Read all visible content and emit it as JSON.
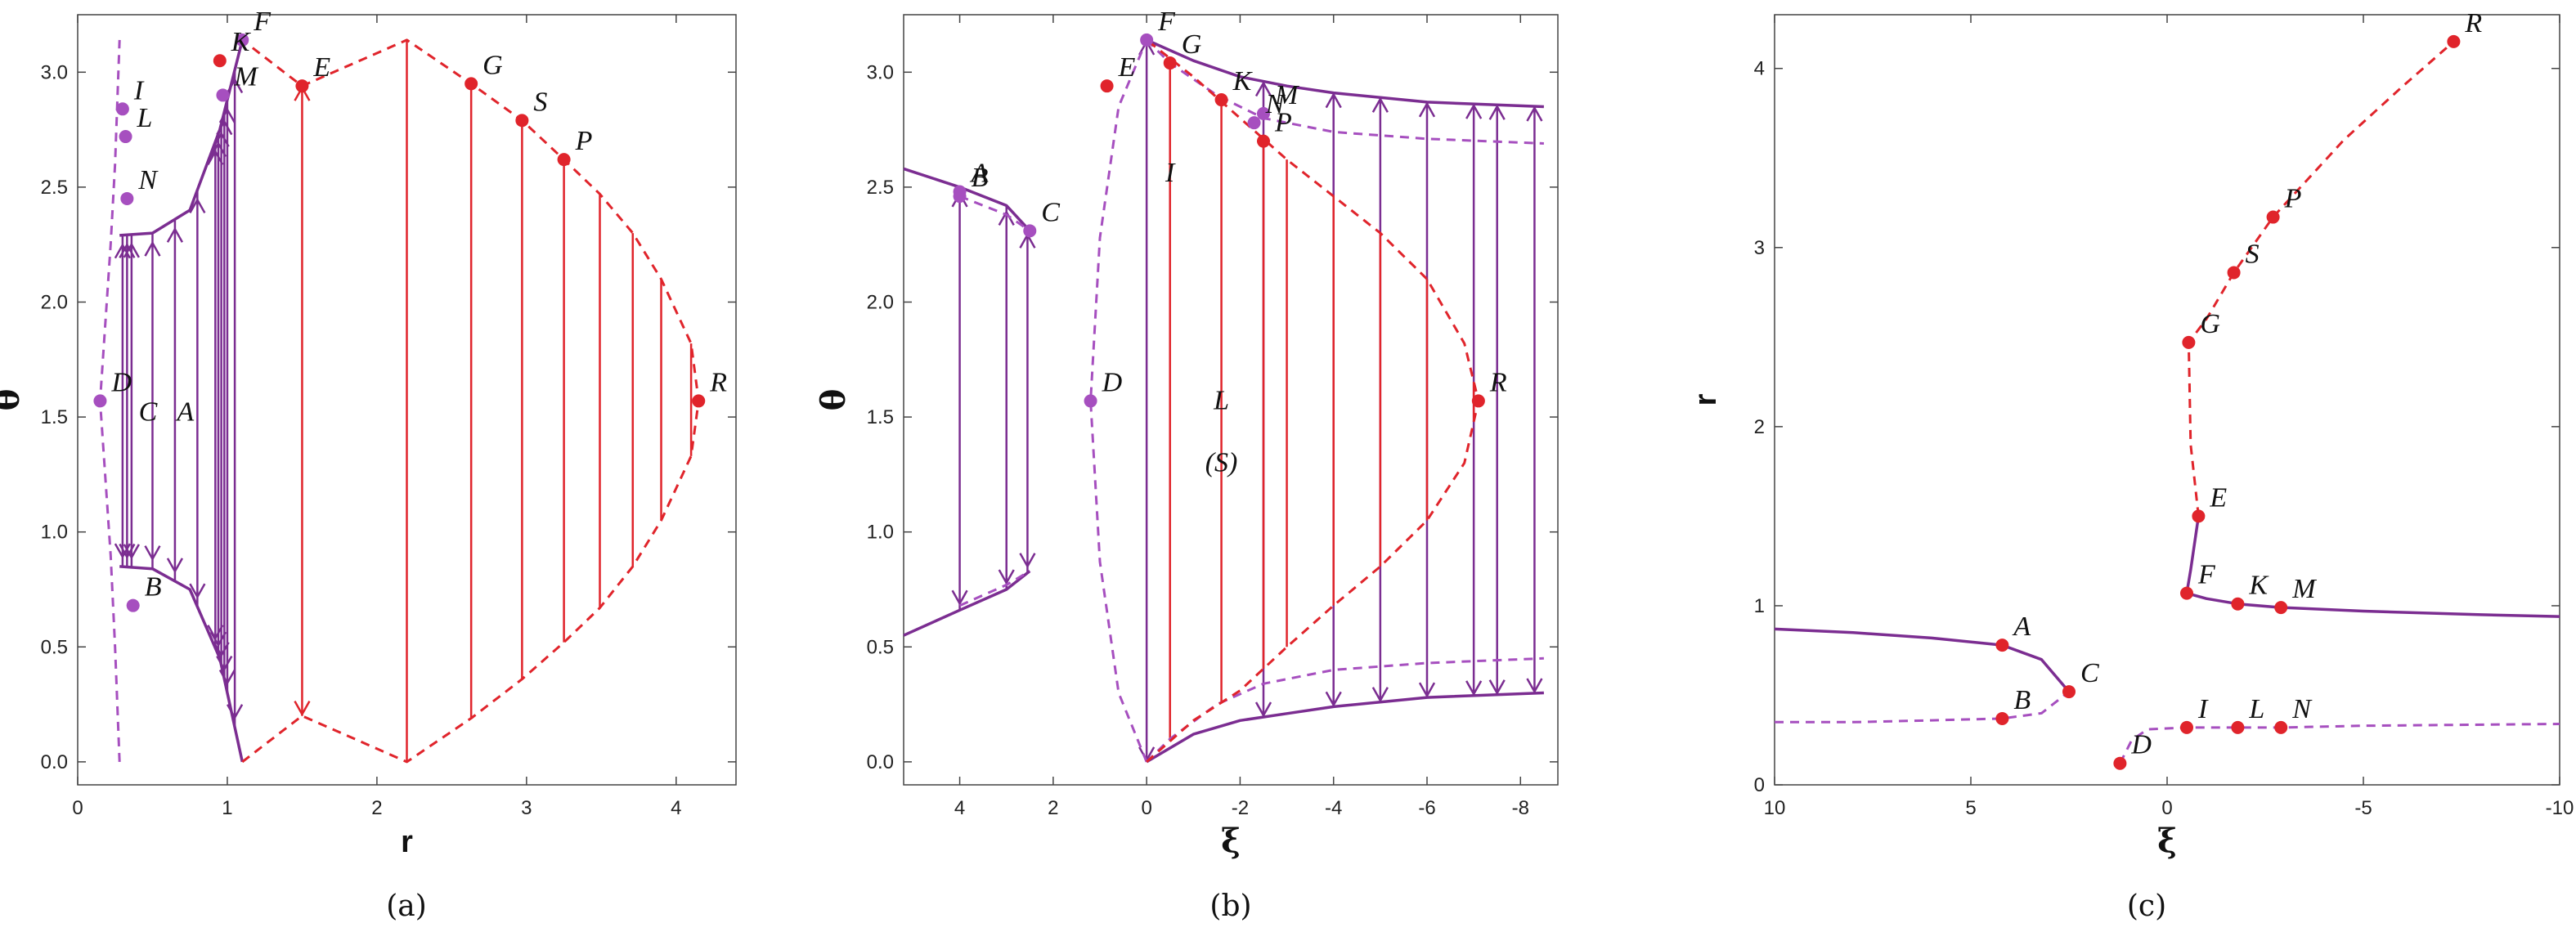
{
  "colors": {
    "purple": "#7b2d91",
    "light_purple": "#a64fbf",
    "red": "#e0242b",
    "axis": "#444444"
  },
  "captions": [
    "(a)",
    "(b)",
    "(c)"
  ],
  "chart_data": [
    {
      "type": "line",
      "panel": "(a)",
      "xlabel": "r",
      "ylabel": "θ",
      "xlim": [
        0,
        4.4
      ],
      "ylim": [
        -0.1,
        3.25
      ],
      "xticks": [
        0,
        1,
        2,
        3,
        4
      ],
      "yticks": [
        0.0,
        0.5,
        1.0,
        1.5,
        2.0,
        2.5,
        3.0
      ],
      "grid": false,
      "series": [
        {
          "style": "purple-solid",
          "points": [
            [
              0.28,
              0.85
            ],
            [
              0.5,
              0.84
            ],
            [
              0.75,
              0.75
            ],
            [
              0.95,
              0.45
            ],
            [
              1.1,
              0.0
            ]
          ]
        },
        {
          "style": "purple-solid",
          "points": [
            [
              0.28,
              2.29
            ],
            [
              0.5,
              2.3
            ],
            [
              0.75,
              2.4
            ],
            [
              0.95,
              2.75
            ],
            [
              1.1,
              3.14
            ]
          ]
        },
        {
          "style": "purple-dashed",
          "points": [
            [
              0.28,
              0.0
            ],
            [
              0.25,
              0.5
            ],
            [
              0.22,
              0.9
            ],
            [
              0.15,
              1.57
            ],
            [
              0.22,
              2.25
            ],
            [
              0.25,
              2.6
            ],
            [
              0.28,
              3.14
            ]
          ]
        },
        {
          "style": "red-dashed",
          "points": [
            [
              1.1,
              0.0
            ],
            [
              1.5,
              0.2
            ],
            [
              2.2,
              0.0
            ],
            [
              2.63,
              0.19
            ],
            [
              2.97,
              0.36
            ],
            [
              3.25,
              0.52
            ],
            [
              3.49,
              0.67
            ],
            [
              3.71,
              0.85
            ],
            [
              3.9,
              1.05
            ],
            [
              4.1,
              1.33
            ],
            [
              4.15,
              1.57
            ],
            [
              4.1,
              1.82
            ],
            [
              3.9,
              2.1
            ],
            [
              3.71,
              2.3
            ],
            [
              3.49,
              2.47
            ],
            [
              3.25,
              2.62
            ],
            [
              2.97,
              2.79
            ],
            [
              2.63,
              2.95
            ],
            [
              2.2,
              3.14
            ],
            [
              1.5,
              2.94
            ],
            [
              1.1,
              3.14
            ]
          ]
        }
      ],
      "points": [
        {
          "label": "A",
          "x": 0.72,
          "y": 1.52,
          "labelOnly": true
        },
        {
          "label": "B",
          "x": 0.37,
          "y": 0.68
        },
        {
          "label": "C",
          "x": 0.47,
          "y": 1.52,
          "labelOnly": true
        },
        {
          "label": "D",
          "x": 0.15,
          "y": 1.57
        },
        {
          "label": "E",
          "x": 1.5,
          "y": 2.94
        },
        {
          "label": "F",
          "x": 1.1,
          "y": 3.14
        },
        {
          "label": "G",
          "x": 2.63,
          "y": 2.95
        },
        {
          "label": "I",
          "x": 0.3,
          "y": 2.84
        },
        {
          "label": "K",
          "x": 0.95,
          "y": 3.05
        },
        {
          "label": "L",
          "x": 0.32,
          "y": 2.72
        },
        {
          "label": "M",
          "x": 0.97,
          "y": 2.9
        },
        {
          "label": "N",
          "x": 0.33,
          "y": 2.45
        },
        {
          "label": "P",
          "x": 3.25,
          "y": 2.62
        },
        {
          "label": "R",
          "x": 4.15,
          "y": 1.57
        },
        {
          "label": "S",
          "x": 2.97,
          "y": 2.79
        }
      ]
    },
    {
      "type": "line",
      "panel": "(b)",
      "xlabel": "ξ",
      "ylabel": "θ",
      "xlim": [
        5.2,
        -8.8
      ],
      "ylim": [
        -0.1,
        3.25
      ],
      "xticks": [
        4,
        2,
        0,
        -2,
        -4,
        -6,
        -8
      ],
      "yticks": [
        0.0,
        0.5,
        1.0,
        1.5,
        2.0,
        2.5,
        3.0
      ],
      "grid": false,
      "series": [
        {
          "style": "purple-solid",
          "points": [
            [
              5.2,
              2.58
            ],
            [
              4.0,
              2.5
            ],
            [
              3.0,
              2.42
            ],
            [
              2.5,
              2.31
            ]
          ]
        },
        {
          "style": "purple-solid",
          "points": [
            [
              5.2,
              0.55
            ],
            [
              4.0,
              0.66
            ],
            [
              3.0,
              0.75
            ],
            [
              2.5,
              0.83
            ]
          ]
        },
        {
          "style": "purple-dashed",
          "points": [
            [
              4.0,
              2.46
            ],
            [
              3.0,
              2.38
            ],
            [
              2.5,
              2.31
            ]
          ]
        },
        {
          "style": "purple-dashed",
          "points": [
            [
              4.0,
              0.68
            ],
            [
              3.0,
              0.77
            ],
            [
              2.5,
              0.83
            ]
          ]
        },
        {
          "style": "purple-solid",
          "points": [
            [
              0.0,
              3.14
            ],
            [
              -1.0,
              3.05
            ],
            [
              -2.0,
              2.98
            ],
            [
              -3.0,
              2.94
            ],
            [
              -4.0,
              2.91
            ],
            [
              -6.0,
              2.87
            ],
            [
              -8.5,
              2.85
            ]
          ]
        },
        {
          "style": "purple-solid",
          "points": [
            [
              0.0,
              0.0
            ],
            [
              -1.0,
              0.12
            ],
            [
              -2.0,
              0.18
            ],
            [
              -3.0,
              0.21
            ],
            [
              -4.0,
              0.24
            ],
            [
              -6.0,
              0.28
            ],
            [
              -8.5,
              0.3
            ]
          ]
        },
        {
          "style": "purple-dashed",
          "points": [
            [
              0.0,
              3.14
            ],
            [
              -0.5,
              3.04
            ],
            [
              -1.5,
              2.9
            ],
            [
              -2.5,
              2.8
            ],
            [
              -4.0,
              2.74
            ],
            [
              -6.0,
              2.71
            ],
            [
              -8.5,
              2.69
            ]
          ]
        },
        {
          "style": "purple-dashed",
          "points": [
            [
              0.0,
              0.0
            ],
            [
              -0.5,
              0.1
            ],
            [
              -1.5,
              0.25
            ],
            [
              -2.5,
              0.34
            ],
            [
              -4.0,
              0.4
            ],
            [
              -6.0,
              0.43
            ],
            [
              -8.5,
              0.45
            ]
          ]
        },
        {
          "style": "purple-dashed",
          "points": [
            [
              0.0,
              0.0
            ],
            [
              0.6,
              0.3
            ],
            [
              1.0,
              0.87
            ],
            [
              1.2,
              1.57
            ],
            [
              1.0,
              2.28
            ],
            [
              0.6,
              2.85
            ],
            [
              0.0,
              3.14
            ]
          ]
        },
        {
          "style": "red-dashed",
          "points": [
            [
              0.0,
              0.0
            ],
            [
              -1.0,
              0.18
            ],
            [
              -2.0,
              0.31
            ],
            [
              -3.0,
              0.5
            ],
            [
              -4.0,
              0.68
            ],
            [
              -5.0,
              0.85
            ],
            [
              -6.0,
              1.05
            ],
            [
              -6.8,
              1.3
            ],
            [
              -7.1,
              1.57
            ],
            [
              -6.8,
              1.82
            ],
            [
              -6.0,
              2.1
            ],
            [
              -5.0,
              2.3
            ],
            [
              -4.0,
              2.46
            ],
            [
              -3.0,
              2.62
            ],
            [
              -2.0,
              2.8
            ],
            [
              -1.0,
              2.98
            ],
            [
              0.0,
              3.14
            ]
          ]
        }
      ],
      "points": [
        {
          "label": "A",
          "x": 4.0,
          "y": 2.48
        },
        {
          "label": "B",
          "x": 4.0,
          "y": 2.46
        },
        {
          "label": "C",
          "x": 2.5,
          "y": 2.31
        },
        {
          "label": "D",
          "x": 1.2,
          "y": 1.57
        },
        {
          "label": "E",
          "x": 0.85,
          "y": 2.94
        },
        {
          "label": "F",
          "x": 0.0,
          "y": 3.14
        },
        {
          "label": "G",
          "x": -0.5,
          "y": 3.04
        },
        {
          "label": "I",
          "x": -0.5,
          "y": 2.56,
          "labelOnly": true
        },
        {
          "label": "K",
          "x": -1.6,
          "y": 2.88
        },
        {
          "label": "L",
          "x": -1.6,
          "y": 1.57,
          "labelOnly": true
        },
        {
          "label": "(S)",
          "x": -1.6,
          "y": 1.3,
          "labelOnly": true
        },
        {
          "label": "M",
          "x": -2.5,
          "y": 2.82
        },
        {
          "label": "N",
          "x": -2.3,
          "y": 2.78
        },
        {
          "label": "P",
          "x": -2.5,
          "y": 2.7
        },
        {
          "label": "R",
          "x": -7.1,
          "y": 1.57
        }
      ]
    },
    {
      "type": "line",
      "panel": "(c)",
      "xlabel": "ξ",
      "ylabel": "r",
      "xlim": [
        10,
        -10
      ],
      "ylim": [
        0,
        4.3
      ],
      "xticks": [
        10,
        5,
        0,
        -5,
        -10
      ],
      "yticks": [
        0,
        1,
        2,
        3,
        4
      ],
      "grid": false,
      "series": [
        {
          "style": "purple-solid",
          "points": [
            [
              10,
              0.87
            ],
            [
              8,
              0.85
            ],
            [
              6,
              0.82
            ],
            [
              4.2,
              0.78
            ],
            [
              3.2,
              0.7
            ],
            [
              2.5,
              0.52
            ]
          ]
        },
        {
          "style": "purple-dashed",
          "points": [
            [
              10,
              0.35
            ],
            [
              8,
              0.35
            ],
            [
              6,
              0.36
            ],
            [
              4.2,
              0.37
            ],
            [
              3.2,
              0.4
            ],
            [
              2.5,
              0.52
            ]
          ]
        },
        {
          "style": "purple-solid",
          "points": [
            [
              -0.8,
              1.5
            ],
            [
              -0.6,
              1.2
            ],
            [
              -0.5,
              1.07
            ],
            [
              -1.0,
              1.04
            ],
            [
              -1.8,
              1.01
            ],
            [
              -2.9,
              0.99
            ],
            [
              -5,
              0.97
            ],
            [
              -8,
              0.95
            ],
            [
              -10,
              0.94
            ]
          ]
        },
        {
          "style": "purple-dashed",
          "points": [
            [
              1.2,
              0.12
            ],
            [
              0.9,
              0.25
            ],
            [
              0.5,
              0.31
            ],
            [
              -0.5,
              0.32
            ],
            [
              -1.8,
              0.32
            ],
            [
              -2.9,
              0.32
            ],
            [
              -5,
              0.33
            ],
            [
              -10,
              0.34
            ]
          ]
        },
        {
          "style": "red-dashed",
          "points": [
            [
              -0.8,
              1.5
            ],
            [
              -0.6,
              1.9
            ],
            [
              -0.55,
              2.47
            ],
            [
              -1.0,
              2.6
            ],
            [
              -1.7,
              2.86
            ],
            [
              -2.7,
              3.17
            ],
            [
              -4.5,
              3.6
            ],
            [
              -6.0,
              3.9
            ],
            [
              -7.3,
              4.15
            ]
          ]
        }
      ],
      "points": [
        {
          "label": "A",
          "x": 4.2,
          "y": 0.78
        },
        {
          "label": "B",
          "x": 4.2,
          "y": 0.37
        },
        {
          "label": "C",
          "x": 2.5,
          "y": 0.52
        },
        {
          "label": "D",
          "x": 1.2,
          "y": 0.12
        },
        {
          "label": "E",
          "x": -0.8,
          "y": 1.5
        },
        {
          "label": "F",
          "x": -0.5,
          "y": 1.07
        },
        {
          "label": "G",
          "x": -0.55,
          "y": 2.47
        },
        {
          "label": "I",
          "x": -0.5,
          "y": 0.32
        },
        {
          "label": "K",
          "x": -1.8,
          "y": 1.01
        },
        {
          "label": "L",
          "x": -1.8,
          "y": 0.32
        },
        {
          "label": "M",
          "x": -2.9,
          "y": 0.99
        },
        {
          "label": "N",
          "x": -2.9,
          "y": 0.32
        },
        {
          "label": "P",
          "x": -2.7,
          "y": 3.17
        },
        {
          "label": "R",
          "x": -7.3,
          "y": 4.15
        },
        {
          "label": "S",
          "x": -1.7,
          "y": 2.86
        }
      ]
    }
  ]
}
